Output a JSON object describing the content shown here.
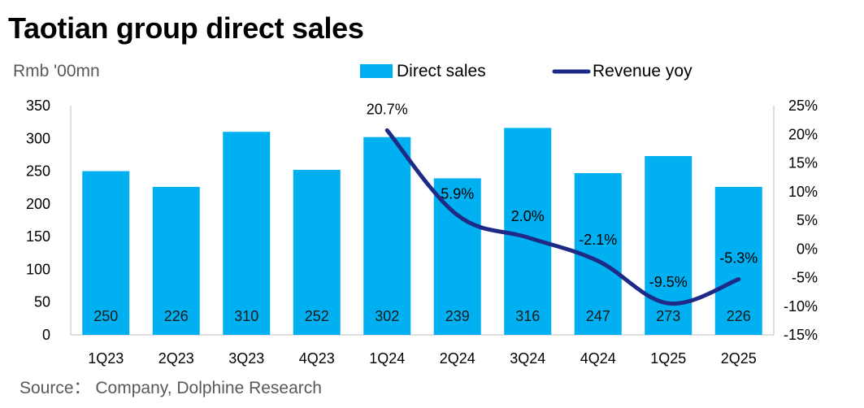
{
  "title": "Taotian group direct sales",
  "unit_label": "Rmb '00mn",
  "source": "Source： Company, Dolphine Research",
  "chart_data": {
    "type": "bar",
    "categories": [
      "1Q23",
      "2Q23",
      "3Q23",
      "4Q23",
      "1Q24",
      "2Q24",
      "3Q24",
      "4Q24",
      "1Q25",
      "2Q25"
    ],
    "series": [
      {
        "name": "Direct sales",
        "type": "bar",
        "axis": "left",
        "color": "#00B0F0",
        "values": [
          250,
          226,
          310,
          252,
          302,
          239,
          316,
          247,
          273,
          226
        ],
        "labels": [
          "250",
          "226",
          "310",
          "252",
          "302",
          "239",
          "316",
          "247",
          "273",
          "226"
        ]
      },
      {
        "name": "Revenue yoy",
        "type": "line",
        "axis": "right",
        "color": "#1F2A86",
        "values": [
          null,
          null,
          null,
          null,
          20.7,
          5.9,
          2.0,
          -2.1,
          -9.5,
          -5.3
        ],
        "labels": [
          "",
          "",
          "",
          "",
          "20.7%",
          "5.9%",
          "2.0%",
          "-2.1%",
          "-9.5%",
          "-5.3%"
        ]
      }
    ],
    "y_left": {
      "min": 0,
      "max": 350,
      "step": 50,
      "ticks": [
        "0",
        "50",
        "100",
        "150",
        "200",
        "250",
        "300",
        "350"
      ]
    },
    "y_right": {
      "min": -15,
      "max": 25,
      "step": 5,
      "ticks": [
        "-15%",
        "-10%",
        "-5%",
        "0%",
        "5%",
        "10%",
        "15%",
        "20%",
        "25%"
      ]
    },
    "legend": {
      "position": "top",
      "items": [
        "Direct sales",
        "Revenue yoy"
      ]
    },
    "grid": false
  }
}
